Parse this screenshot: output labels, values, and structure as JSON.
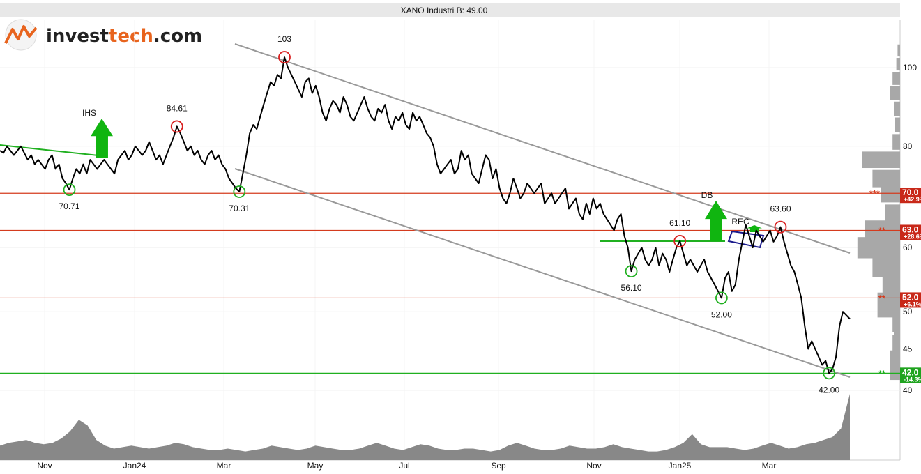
{
  "title": "XANO Industri B: 49.00",
  "logo": {
    "part1": "invest",
    "part2": "tech",
    "part3": ".com",
    "color1": "#222222",
    "color2": "#e8641e"
  },
  "chart_data": {
    "type": "line",
    "ylim": [
      35,
      110
    ],
    "y_ticks": [
      40,
      45,
      50,
      60,
      80,
      100
    ],
    "x_ticks": [
      "Nov",
      "Jan24",
      "Mar",
      "May",
      "Jul",
      "Sep",
      "Nov",
      "Jan25",
      "Mar"
    ],
    "series": [
      {
        "values": [
          79,
          78.5,
          80,
          79,
          78,
          79,
          80,
          78.5,
          77,
          78,
          76,
          77,
          76,
          75,
          77,
          78,
          75,
          76,
          73,
          72,
          70.71,
          73,
          75,
          74,
          76,
          74,
          77,
          76,
          75,
          76,
          77,
          76,
          75,
          74,
          77,
          78,
          79,
          77,
          78,
          80,
          79,
          78,
          79,
          81,
          79,
          77,
          78,
          76,
          78,
          80,
          82,
          84.61,
          83,
          81,
          79,
          80,
          78,
          79,
          77,
          76,
          78,
          79,
          77,
          78,
          76,
          75,
          73,
          72,
          71,
          70.31,
          74,
          78,
          83,
          85,
          84,
          87,
          90,
          93,
          96,
          95,
          98,
          97,
          103,
          100,
          98,
          96,
          94,
          92,
          96,
          97,
          93,
          95,
          92,
          88,
          86,
          89,
          91,
          90,
          88,
          92,
          90,
          87,
          86,
          88,
          90,
          92,
          89,
          87,
          86,
          89,
          88,
          90,
          86,
          84,
          87,
          86,
          88,
          85,
          84,
          88,
          86,
          87,
          85,
          83,
          82,
          80,
          76,
          74,
          75,
          76,
          77,
          74,
          75,
          79,
          77,
          78,
          74,
          73,
          72,
          75,
          78,
          77,
          73,
          75,
          71,
          69,
          68,
          70,
          73,
          71,
          69,
          70,
          72,
          71,
          70,
          71,
          72,
          68,
          69,
          70,
          68,
          69,
          70,
          71,
          67,
          68,
          69,
          66,
          65,
          68,
          66,
          69,
          67,
          68,
          66,
          65,
          64,
          63,
          65,
          66,
          62,
          60,
          56.1,
          58,
          59,
          60,
          58,
          57,
          58,
          60,
          57,
          59,
          58,
          56,
          58,
          60,
          61.1,
          59,
          57,
          58,
          57,
          56,
          57,
          58,
          56,
          55,
          54,
          53,
          52,
          55,
          56,
          53,
          54,
          58,
          61,
          64,
          62,
          60,
          63,
          62,
          61,
          62,
          63,
          61,
          62,
          63.6,
          61,
          59,
          57,
          56,
          54,
          52,
          48,
          45,
          46,
          45,
          44,
          43,
          43.5,
          42,
          42.5,
          44,
          48,
          50,
          49.5,
          49
        ]
      }
    ],
    "volume": [
      5,
      6,
      6.5,
      7,
      6,
      5.5,
      6,
      7.5,
      10,
      14,
      12,
      7,
      5,
      4,
      4.5,
      5,
      4.5,
      4,
      4.5,
      5,
      6,
      5.5,
      4.5,
      4,
      3.5,
      3.5,
      4,
      3.5,
      3,
      3.5,
      4,
      5,
      4.5,
      4,
      3.5,
      4,
      5,
      4.5,
      4,
      3.5,
      3.5,
      4,
      5,
      6,
      5,
      4,
      3.5,
      4.5,
      5.5,
      5,
      4,
      3.5,
      3.5,
      4,
      4,
      3.5,
      3,
      3.5,
      5,
      6,
      5,
      4,
      3.5,
      3.5,
      4,
      5,
      4.5,
      4,
      4,
      4.5,
      5.5,
      4.5,
      4,
      3.5,
      3,
      3,
      3.5,
      4.5,
      6,
      9,
      5.5,
      4.5,
      4.5,
      4.5,
      4,
      3.5,
      4,
      5,
      6,
      5,
      4,
      4.5,
      5.5,
      6,
      7,
      8,
      11,
      23
    ],
    "levels": [
      {
        "value": 70.0,
        "label": "70.0",
        "pct": "+42.9%",
        "stars": "***",
        "color": "#d43b1e",
        "tag_bg": "#c82819"
      },
      {
        "value": 63.0,
        "label": "63.0",
        "pct": "+28.6%",
        "stars": "**",
        "color": "#d43b1e",
        "tag_bg": "#c82819"
      },
      {
        "value": 52.0,
        "label": "52.0",
        "pct": "+6.1%",
        "stars": "**",
        "color": "#d43b1e",
        "tag_bg": "#c82819"
      },
      {
        "value": 42.0,
        "label": "42.0",
        "pct": "-14.3%",
        "stars": "**",
        "color": "#20b020",
        "tag_bg": "#1fa31f"
      }
    ],
    "point_labels": [
      {
        "text": "70.71",
        "type": "low"
      },
      {
        "text": "84.61",
        "type": "high"
      },
      {
        "text": "70.31",
        "type": "low"
      },
      {
        "text": "103",
        "type": "high"
      },
      {
        "text": "56.10",
        "type": "low"
      },
      {
        "text": "61.10",
        "type": "high"
      },
      {
        "text": "52.00",
        "type": "low"
      },
      {
        "text": "63.60",
        "type": "high"
      },
      {
        "text": "42.00",
        "type": "low"
      }
    ],
    "patterns": [
      {
        "text": "IHS",
        "signal": "buy"
      },
      {
        "text": "DB",
        "signal": "buy"
      },
      {
        "text": "REC",
        "signal": "buy"
      }
    ],
    "colors": {
      "price": "#000000",
      "trend": "#999999",
      "volume": "#888888",
      "buy": "#10b510",
      "high": "#d82020",
      "low": "#20b020"
    }
  }
}
